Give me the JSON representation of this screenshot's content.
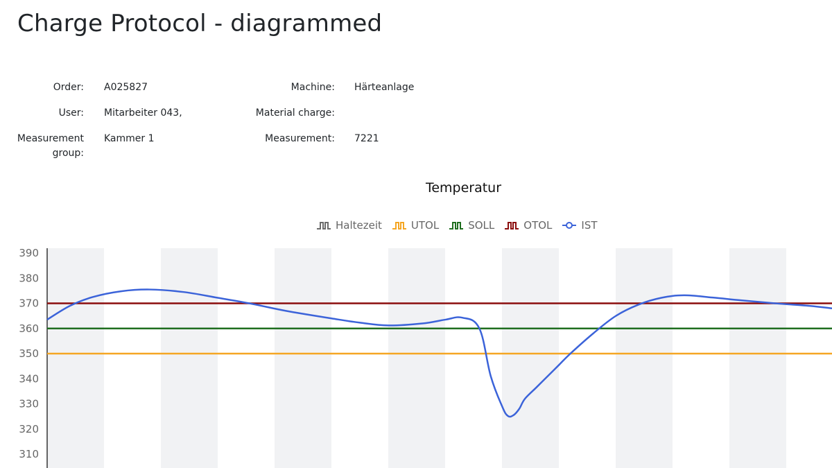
{
  "page": {
    "title": "Charge Protocol - diagrammed"
  },
  "info": {
    "order_label": "Order:",
    "order_value": "A025827",
    "user_label": "User:",
    "user_value": "Mitarbeiter 043,",
    "group_label_1": "Measurement",
    "group_label_2": "group:",
    "group_value": "Kammer 1",
    "machine_label": "Machine:",
    "machine_value": "Härteanlage",
    "material_label": "Material charge:",
    "material_value": "",
    "measurement_label": "Measurement:",
    "measurement_value": "7221"
  },
  "legend": [
    {
      "label": "Haltezeit",
      "color": "#6b6b6b",
      "icon": "step-line-icon"
    },
    {
      "label": "UTOL",
      "color": "#f5a623",
      "icon": "step-line-icon"
    },
    {
      "label": "SOLL",
      "color": "#1f6e1f",
      "icon": "step-line-icon"
    },
    {
      "label": "OTOL",
      "color": "#8b0d0d",
      "icon": "step-line-icon"
    },
    {
      "label": "IST",
      "color": "#3b63d9",
      "icon": "line-circle-icon"
    }
  ],
  "chart_data": {
    "type": "line",
    "title": "Temperatur",
    "xlabel": "",
    "ylabel": "",
    "ylim": [
      305,
      392
    ],
    "y_ticks": [
      390,
      380,
      370,
      360,
      350,
      340,
      330,
      320,
      310
    ],
    "grid": "alternating vertical bands",
    "legend_position": "top",
    "series": [
      {
        "name": "OTOL",
        "color": "#8b0d0d",
        "y_constant": 370
      },
      {
        "name": "SOLL",
        "color": "#1f6e1f",
        "y_constant": 360
      },
      {
        "name": "UTOL",
        "color": "#f5a623",
        "y_constant": 350
      },
      {
        "name": "IST",
        "color": "#3b63d9",
        "x": [
          0,
          4,
          8,
          13,
          18,
          24,
          30,
          36,
          42,
          50,
          55,
          60,
          66,
          70,
          73,
          76,
          78,
          80,
          81,
          82,
          83,
          84,
          86,
          88,
          90,
          92,
          96,
          100,
          104,
          108,
          112,
          117,
          122,
          128,
          134,
          138
        ],
        "values": [
          363.5,
          369,
          372.5,
          374.8,
          375.5,
          374.5,
          372.2,
          369.8,
          367,
          364,
          362.3,
          361.2,
          362,
          363.5,
          364.3,
          360,
          341,
          329,
          325.2,
          325.5,
          328,
          332,
          336.5,
          341,
          345.5,
          350,
          358,
          365,
          369.5,
          372.2,
          373.2,
          372.3,
          371.2,
          370,
          369,
          368
        ]
      },
      {
        "name": "Haltezeit",
        "color": "#6b6b6b",
        "values": []
      }
    ]
  }
}
